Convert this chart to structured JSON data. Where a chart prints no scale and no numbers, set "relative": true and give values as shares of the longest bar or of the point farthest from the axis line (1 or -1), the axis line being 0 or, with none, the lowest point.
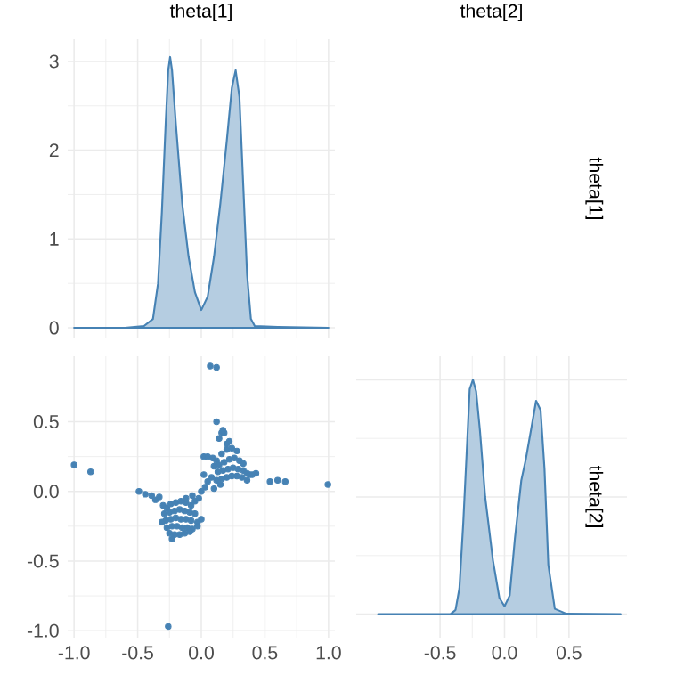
{
  "chart_data": [
    {
      "type": "area",
      "title": "theta[1]",
      "color": "#4682b4",
      "grid": true,
      "tick_labels": "y",
      "xlim": [
        -1.05,
        1.05
      ],
      "ylim": [
        -0.12,
        3.25
      ],
      "yticks": [
        0,
        1,
        2,
        3
      ],
      "x": [
        -1.0,
        -0.6,
        -0.45,
        -0.38,
        -0.34,
        -0.31,
        -0.28,
        -0.26,
        -0.245,
        -0.23,
        -0.2,
        -0.15,
        -0.1,
        -0.05,
        0.0,
        0.05,
        0.1,
        0.15,
        0.2,
        0.24,
        0.27,
        0.3,
        0.33,
        0.36,
        0.39,
        0.42,
        0.6,
        1.0
      ],
      "values": [
        0,
        0,
        0.02,
        0.1,
        0.5,
        1.3,
        2.3,
        2.9,
        3.05,
        2.9,
        2.3,
        1.4,
        0.8,
        0.4,
        0.2,
        0.35,
        0.8,
        1.4,
        2.1,
        2.7,
        2.9,
        2.6,
        1.6,
        0.6,
        0.1,
        0.02,
        0.01,
        0
      ]
    },
    {
      "type": "other",
      "title": "theta[2]",
      "y2label": "theta[1]"
    },
    {
      "type": "scatter",
      "color": "#4682b4",
      "grid": true,
      "xlim": [
        -1.05,
        1.05
      ],
      "ylim": [
        -1.05,
        0.97
      ],
      "xticks": [
        {
          "value": -1,
          "label": "-1.0"
        },
        {
          "value": -0.5,
          "label": "-0.5"
        },
        {
          "value": 0,
          "label": "0.0"
        },
        {
          "value": 0.5,
          "label": "0.5"
        },
        {
          "value": 1,
          "label": "1.0"
        }
      ],
      "yticks": [
        {
          "value": -1,
          "label": "-1.0"
        },
        {
          "value": -0.5,
          "label": "-0.5"
        },
        {
          "value": 0,
          "label": "0.0"
        },
        {
          "value": 0.5,
          "label": "0.5"
        }
      ],
      "x": [
        -0.3,
        -0.27,
        -0.24,
        -0.2,
        -0.16,
        -0.12,
        -0.08,
        -0.05,
        -0.29,
        -0.25,
        -0.21,
        -0.17,
        -0.13,
        -0.09,
        -0.05,
        -0.28,
        -0.24,
        -0.2,
        -0.16,
        -0.12,
        -0.08,
        -0.03,
        0.0,
        -0.27,
        -0.23,
        -0.19,
        -0.15,
        -0.11,
        -0.07,
        -0.03,
        -0.25,
        -0.21,
        -0.17,
        -0.13,
        -0.09,
        -0.23,
        -0.36,
        -0.33,
        -0.39,
        -0.44,
        -0.49,
        -0.31,
        -0.12,
        -0.07,
        -0.02,
        0.0,
        0.03,
        0.05,
        0.08,
        0.1,
        0.02,
        0.02,
        0.05,
        0.09,
        0.12,
        0.16,
        0.2,
        0.24,
        0.28,
        0.1,
        0.14,
        0.18,
        0.22,
        0.26,
        0.3,
        0.33,
        0.13,
        0.17,
        0.21,
        0.25,
        0.29,
        0.33,
        0.36,
        0.16,
        0.2,
        0.24,
        0.28,
        0.32,
        0.36,
        0.38,
        0.12,
        0.15,
        0.14,
        0.16,
        0.18,
        0.2,
        0.12,
        0.17,
        0.22,
        0.43,
        0.4,
        -1.0,
        -0.87,
        0.07,
        0.12,
        -0.26,
        0.995,
        0.54,
        0.6,
        0.66
      ],
      "values": [
        -0.1,
        -0.12,
        -0.09,
        -0.08,
        -0.07,
        -0.08,
        -0.1,
        -0.07,
        -0.16,
        -0.15,
        -0.14,
        -0.13,
        -0.14,
        -0.15,
        -0.16,
        -0.21,
        -0.2,
        -0.19,
        -0.2,
        -0.2,
        -0.21,
        -0.22,
        -0.2,
        -0.26,
        -0.25,
        -0.25,
        -0.26,
        -0.26,
        -0.27,
        -0.25,
        -0.3,
        -0.31,
        -0.31,
        -0.3,
        -0.29,
        -0.34,
        -0.06,
        -0.04,
        -0.03,
        -0.02,
        0.0,
        -0.22,
        -0.05,
        -0.03,
        -0.05,
        0.0,
        0.03,
        0.07,
        0.1,
        0.02,
        0.12,
        0.25,
        0.25,
        0.24,
        0.22,
        0.27,
        0.3,
        0.31,
        0.29,
        0.18,
        0.19,
        0.21,
        0.23,
        0.24,
        0.22,
        0.2,
        0.14,
        0.15,
        0.16,
        0.17,
        0.16,
        0.15,
        0.13,
        0.09,
        0.1,
        0.11,
        0.11,
        0.1,
        0.08,
        0.12,
        0.08,
        0.05,
        0.38,
        0.42,
        0.42,
        0.34,
        0.5,
        0.44,
        0.36,
        0.13,
        0.12,
        0.19,
        0.14,
        0.9,
        0.89,
        -0.97,
        0.05,
        0.07,
        0.08,
        0.07
      ]
    },
    {
      "type": "area",
      "y2label": "theta[2]",
      "color": "#4682b4",
      "grid": true,
      "relative": true,
      "xlim": [
        -1.15,
        0.95
      ],
      "xticks": [
        {
          "value": -0.5,
          "label": "-0.5"
        },
        {
          "value": 0,
          "label": "0.0"
        },
        {
          "value": 0.5,
          "label": "0.5"
        }
      ],
      "x": [
        -0.98,
        -0.42,
        -0.38,
        -0.35,
        -0.32,
        -0.29,
        -0.27,
        -0.245,
        -0.22,
        -0.19,
        -0.15,
        -0.09,
        -0.04,
        0.0,
        0.04,
        0.08,
        0.13,
        0.165,
        0.21,
        0.245,
        0.28,
        0.31,
        0.34,
        0.39,
        0.48,
        0.9
      ],
      "values": [
        0,
        0,
        0.018,
        0.11,
        0.39,
        0.73,
        0.96,
        1,
        0.95,
        0.78,
        0.5,
        0.23,
        0.07,
        0.034,
        0.08,
        0.32,
        0.57,
        0.66,
        0.8,
        0.91,
        0.87,
        0.62,
        0.21,
        0.023,
        0.002,
        0
      ]
    }
  ]
}
